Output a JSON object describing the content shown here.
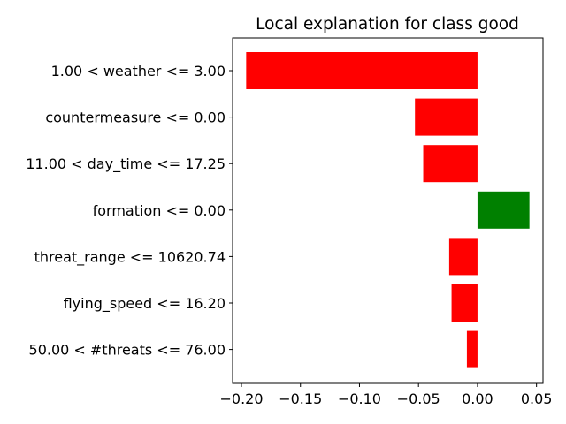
{
  "chart_data": {
    "type": "bar",
    "orientation": "horizontal",
    "title": "Local explanation for class good",
    "xlabel": "",
    "ylabel": "",
    "categories": [
      "1.00 < weather <= 3.00",
      "countermeasure <= 0.00",
      "11.00 < day_time <= 17.25",
      "formation <= 0.00",
      "threat_range <= 10620.74",
      "flying_speed <= 16.20",
      "50.00 < #threats <= 76.00"
    ],
    "values": [
      -0.196,
      -0.053,
      -0.046,
      0.044,
      -0.024,
      -0.022,
      -0.009
    ],
    "xlim": [
      -0.2075,
      0.0555
    ],
    "xticks": [
      -0.2,
      -0.15,
      -0.1,
      -0.05,
      0.0,
      0.05
    ],
    "xtick_labels": [
      "−0.20",
      "−0.15",
      "−0.10",
      "−0.05",
      "0.00",
      "0.05"
    ],
    "colors": {
      "negative": "#ff0000",
      "positive": "#008000"
    },
    "grid": false
  }
}
